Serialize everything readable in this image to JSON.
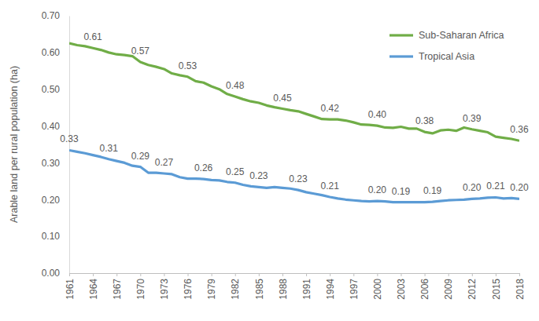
{
  "chart_data": {
    "type": "line",
    "y_label": "Arable land per rural population (ha)",
    "x": [
      1961,
      1962,
      1963,
      1964,
      1965,
      1966,
      1967,
      1968,
      1969,
      1970,
      1971,
      1972,
      1973,
      1974,
      1975,
      1976,
      1977,
      1978,
      1979,
      1980,
      1981,
      1982,
      1983,
      1984,
      1985,
      1986,
      1987,
      1988,
      1989,
      1990,
      1991,
      1992,
      1993,
      1994,
      1995,
      1996,
      1997,
      1998,
      1999,
      2000,
      2001,
      2002,
      2003,
      2004,
      2005,
      2006,
      2007,
      2008,
      2009,
      2010,
      2011,
      2012,
      2013,
      2014,
      2015,
      2016,
      2017,
      2018
    ],
    "xlim": [
      1961,
      2018
    ],
    "xticks": [
      1961,
      1964,
      1967,
      1970,
      1973,
      1976,
      1979,
      1982,
      1985,
      1988,
      1991,
      1994,
      1997,
      2000,
      2003,
      2006,
      2009,
      2012,
      2015,
      2018
    ],
    "ylim": [
      0,
      0.7
    ],
    "yticks": [
      {
        "value": 0,
        "label": "0.00"
      },
      {
        "value": 0.1,
        "label": "0.10"
      },
      {
        "value": 0.2,
        "label": "0.20"
      },
      {
        "value": 0.3,
        "label": "0.30"
      },
      {
        "value": 0.4,
        "label": "0.40"
      },
      {
        "value": 0.5,
        "label": "0.50"
      },
      {
        "value": 0.6,
        "label": "0.60"
      },
      {
        "value": 0.7,
        "label": "0.70"
      }
    ],
    "grid": false,
    "legend": "top-right",
    "data_labels": true,
    "series": [
      {
        "name": "Sub-Saharan Africa",
        "color": "#70ad47",
        "values": [
          0.625,
          0.62,
          0.617,
          0.612,
          0.607,
          0.6,
          0.595,
          0.593,
          0.59,
          0.574,
          0.566,
          0.561,
          0.555,
          0.543,
          0.538,
          0.534,
          0.522,
          0.518,
          0.508,
          0.5,
          0.487,
          0.48,
          0.473,
          0.467,
          0.463,
          0.456,
          0.451,
          0.447,
          0.443,
          0.44,
          0.433,
          0.426,
          0.419,
          0.418,
          0.418,
          0.415,
          0.41,
          0.404,
          0.403,
          0.401,
          0.396,
          0.395,
          0.398,
          0.393,
          0.393,
          0.384,
          0.38,
          0.388,
          0.39,
          0.387,
          0.396,
          0.391,
          0.387,
          0.383,
          0.371,
          0.368,
          0.365,
          0.36
        ],
        "value_labels": [
          null,
          null,
          null,
          "0.61",
          null,
          null,
          null,
          null,
          null,
          "0.57",
          null,
          null,
          null,
          null,
          null,
          "0.53",
          null,
          null,
          null,
          null,
          null,
          "0.48",
          null,
          null,
          null,
          null,
          null,
          "0.45",
          null,
          null,
          null,
          null,
          null,
          "0.42",
          null,
          null,
          null,
          null,
          null,
          "0.40",
          null,
          null,
          null,
          null,
          null,
          "0.38",
          null,
          null,
          null,
          null,
          null,
          "0.39",
          null,
          null,
          null,
          null,
          null,
          "0.36"
        ]
      },
      {
        "name": "Tropical Asia",
        "color": "#5b9bd5",
        "values": [
          0.334,
          0.33,
          0.326,
          0.321,
          0.316,
          0.31,
          0.305,
          0.3,
          0.292,
          0.289,
          0.273,
          0.273,
          0.271,
          0.269,
          0.261,
          0.257,
          0.257,
          0.256,
          0.253,
          0.252,
          0.248,
          0.246,
          0.24,
          0.236,
          0.234,
          0.232,
          0.234,
          0.232,
          0.23,
          0.226,
          0.22,
          0.216,
          0.212,
          0.207,
          0.203,
          0.2,
          0.198,
          0.196,
          0.195,
          0.196,
          0.195,
          0.193,
          0.193,
          0.193,
          0.193,
          0.193,
          0.194,
          0.196,
          0.198,
          0.199,
          0.2,
          0.202,
          0.203,
          0.205,
          0.206,
          0.203,
          0.204,
          0.202
        ],
        "value_labels": [
          "0.33",
          null,
          null,
          null,
          null,
          "0.31",
          null,
          null,
          null,
          "0.29",
          null,
          null,
          "0.27",
          null,
          null,
          null,
          null,
          "0.26",
          null,
          null,
          null,
          "0.25",
          null,
          null,
          "0.23",
          null,
          null,
          null,
          null,
          "0.23",
          null,
          null,
          null,
          "0.21",
          null,
          null,
          null,
          null,
          null,
          "0.20",
          null,
          null,
          "0.19",
          null,
          null,
          null,
          "0.19",
          null,
          null,
          null,
          null,
          "0.20",
          null,
          null,
          "0.21",
          null,
          null,
          "0.20"
        ]
      }
    ]
  }
}
